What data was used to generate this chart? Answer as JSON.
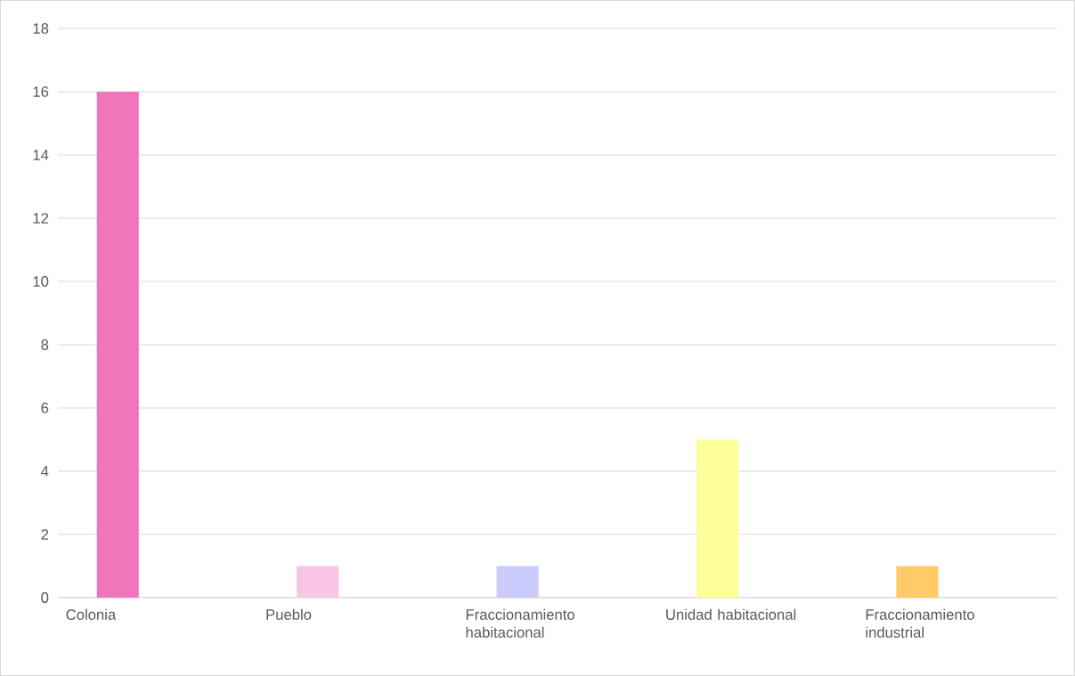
{
  "chart_data": {
    "type": "bar",
    "categories": [
      "Colonia",
      "Pueblo",
      "Fraccionamiento habitacional",
      "Unidad habitacional",
      "Fraccionamiento industrial"
    ],
    "values": [
      16,
      1,
      1,
      5,
      1
    ],
    "colors": [
      "#f075bb",
      "#f7c6e4",
      "#cccbfd",
      "#fdff99",
      "#ffcb66"
    ],
    "ylim": [
      0,
      18
    ],
    "yticks": [
      0,
      2,
      4,
      6,
      8,
      10,
      12,
      14,
      16,
      18
    ],
    "grid": "y"
  }
}
